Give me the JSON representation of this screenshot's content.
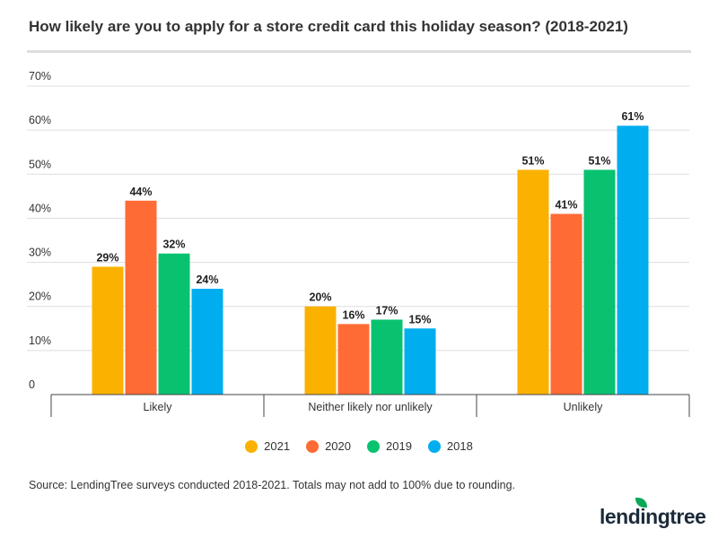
{
  "chart_data": {
    "type": "bar",
    "title": "How likely are you to apply for a store credit card this holiday season? (2018-2021)",
    "categories": [
      "Likely",
      "Neither likely nor unlikely",
      "Unlikely"
    ],
    "series": [
      {
        "name": "2021",
        "color": "#fbb100",
        "values": [
          29,
          20,
          51
        ]
      },
      {
        "name": "2020",
        "color": "#ff6b35",
        "values": [
          44,
          16,
          41
        ]
      },
      {
        "name": "2019",
        "color": "#08c26f",
        "values": [
          32,
          17,
          51
        ]
      },
      {
        "name": "2018",
        "color": "#00aeef",
        "values": [
          24,
          15,
          61
        ]
      }
    ],
    "ylim": [
      0,
      70
    ],
    "yticks": [
      "0",
      "10%",
      "20%",
      "30%",
      "40%",
      "50%",
      "60%",
      "70%"
    ],
    "grid": true,
    "legend": "bottom",
    "source": "Source: LendingTree surveys conducted 2018-2021. Totals may not add to 100% due to rounding."
  },
  "logo": "lendingtree"
}
